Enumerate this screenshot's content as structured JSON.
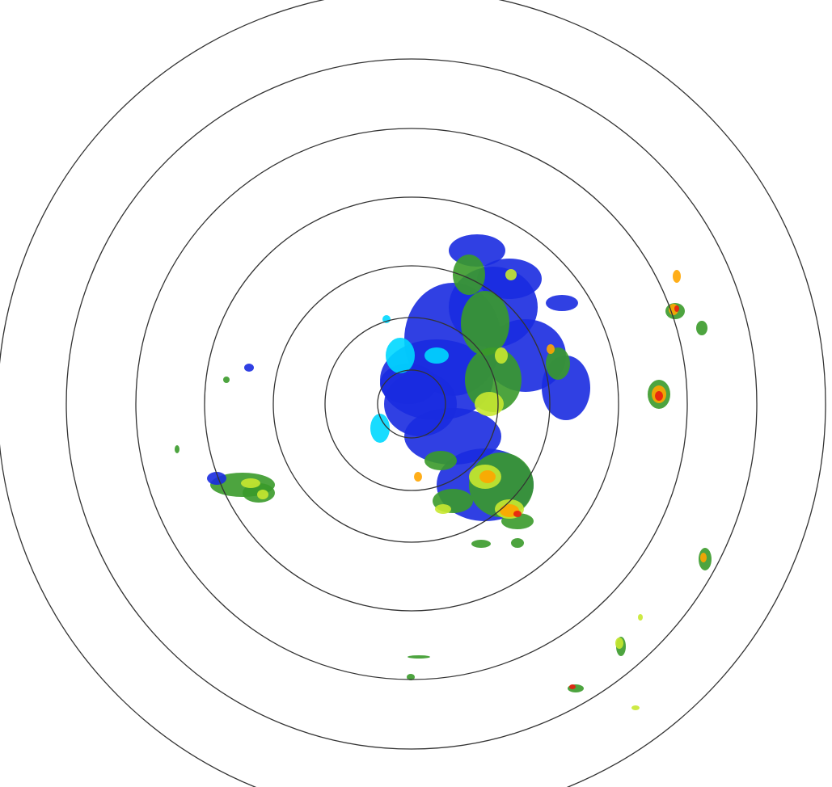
{
  "radar": {
    "ring_count": 7,
    "ring_color": "#333333",
    "background_color": "#ffffff",
    "reflectivity_colors": {
      "light": "#00d8ff",
      "weak": "#1a2be0",
      "moderate": "#3a9a2a",
      "strong": "#c8e830",
      "heavy": "#ffa500",
      "intense": "#e81e10"
    }
  }
}
